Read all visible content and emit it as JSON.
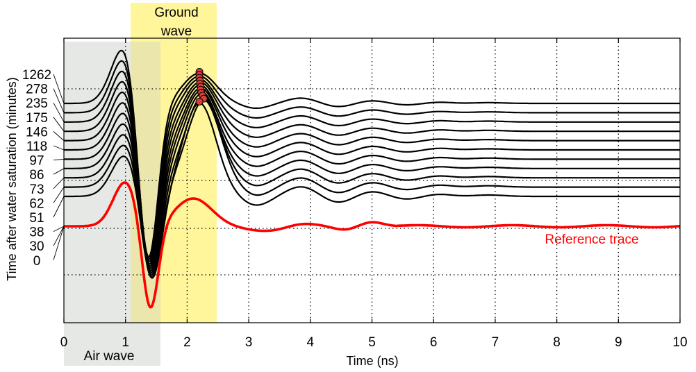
{
  "chart_data": {
    "type": "line",
    "xlabel": "Time (ns)",
    "ylabel": "Time after water saturation (minutes)",
    "xlim": [
      0,
      10
    ],
    "xticks": [
      "0",
      "1",
      "2",
      "3",
      "4",
      "5",
      "6",
      "7",
      "8",
      "9",
      "10"
    ],
    "grid": "dotted",
    "trace_labels": [
      "1262",
      "278",
      "235",
      "175",
      "146",
      "118",
      "97",
      "86",
      "73",
      "62",
      "51",
      "38",
      "30",
      "0"
    ],
    "annotations": {
      "air_wave": "Air wave",
      "ground_wave_line1": "Ground",
      "ground_wave_line2": "wave",
      "reference": "Reference trace"
    },
    "air_wave_window_ns": [
      0,
      1.55
    ],
    "ground_wave_window_ns": [
      1.08,
      2.48
    ],
    "ground_wave_peak_times_ns": [
      2.2,
      2.2,
      2.2,
      2.21,
      2.21,
      2.22,
      2.22,
      2.23,
      2.25,
      2.27,
      2.2
    ],
    "colors": {
      "air_wave_band": "#e6e8e6",
      "ground_wave_band": "#fff59a",
      "trace": "#000000",
      "reference": "#ff0000",
      "marker_fill": "#d9403a"
    }
  }
}
